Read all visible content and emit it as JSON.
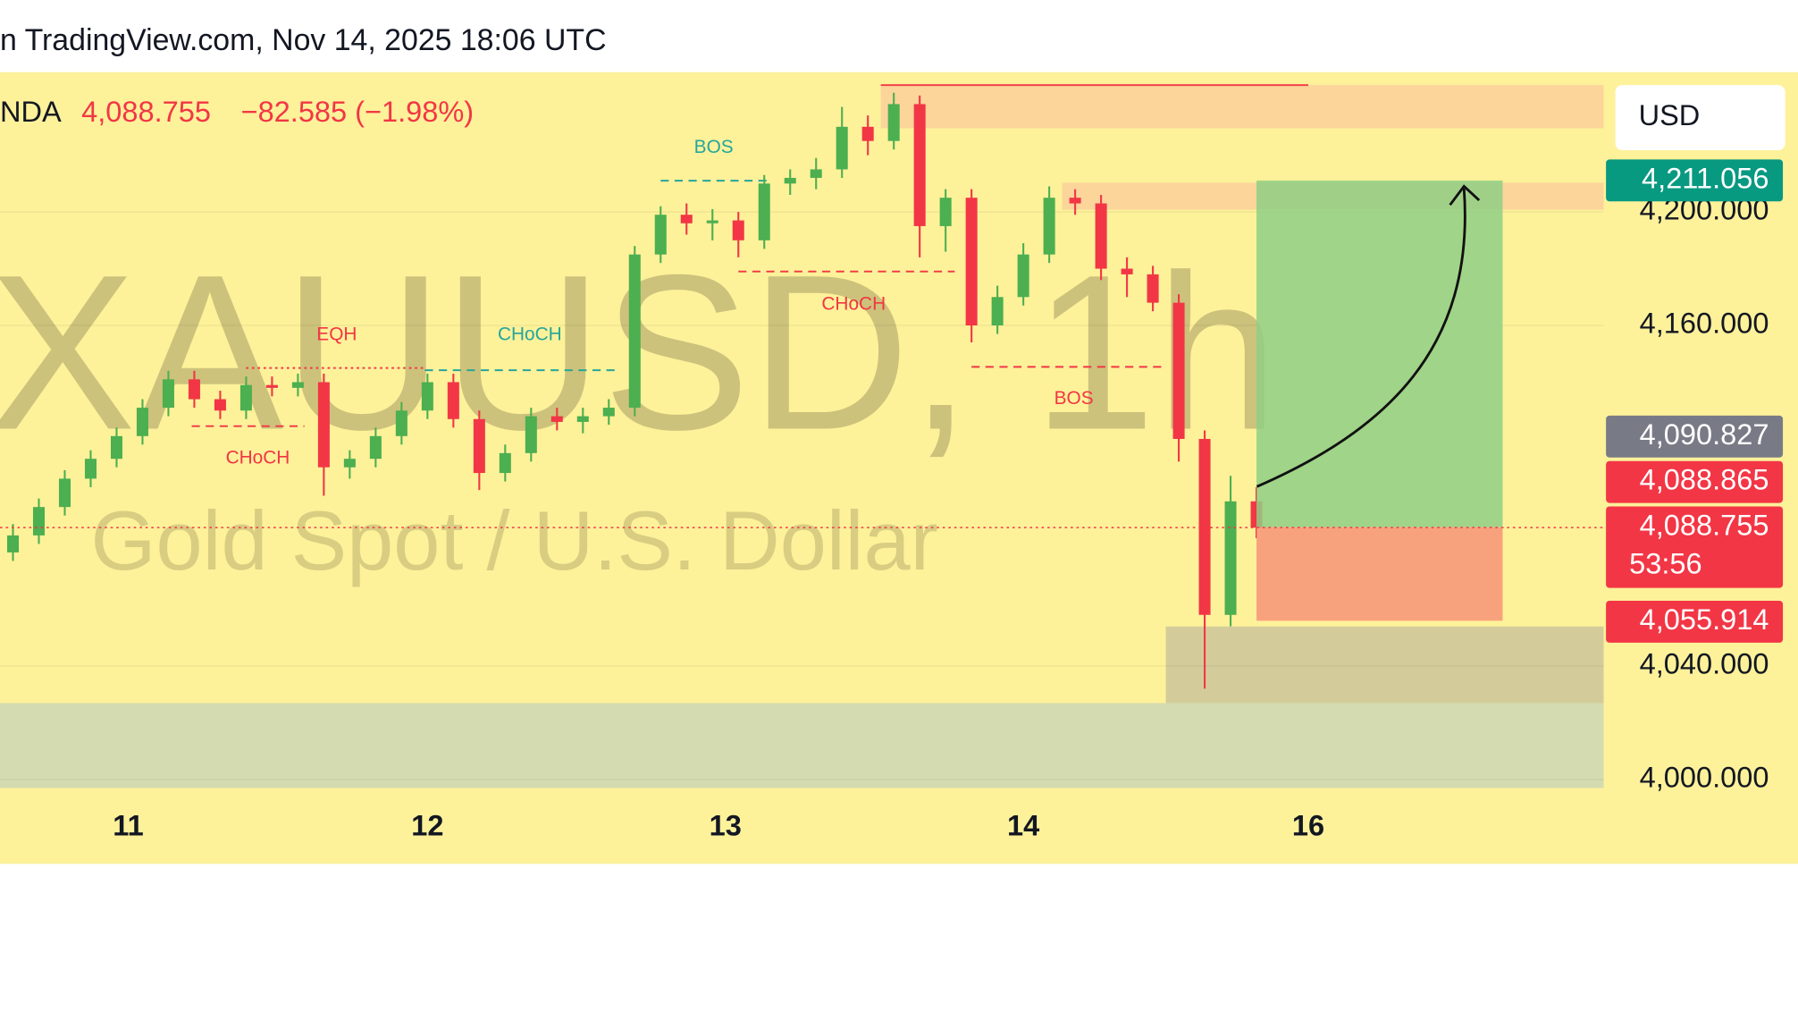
{
  "chart_data": {
    "type": "candlestick",
    "header": "n TradingView.com, Nov 14, 2025 18:06 UTC",
    "symbol": "NDA",
    "last_price": {
      "value": 4088.755,
      "label": "4,088.755"
    },
    "change": "−82.585 (−1.98%)",
    "currency": "USD",
    "watermark_title": "XAUUSD, 1h",
    "watermark_subtitle": "Gold Spot / U.S. Dollar",
    "up_color": "#4caf50",
    "down_color": "#f23645",
    "xlim": [
      0,
      123.8
    ],
    "ylim": [
      3997,
      4249
    ],
    "xticks": [
      {
        "value": 9.9,
        "label": "11"
      },
      {
        "value": 33,
        "label": "12"
      },
      {
        "value": 56,
        "label": "13"
      },
      {
        "value": 79,
        "label": "14"
      },
      {
        "value": 101,
        "label": "16"
      }
    ],
    "yticks": [
      {
        "value": 4000,
        "label": "4,000.000"
      },
      {
        "value": 4040,
        "label": "4,040.000"
      },
      {
        "value": 4160,
        "label": "4,160.000"
      },
      {
        "value": 4200,
        "label": "4,200.000"
      }
    ],
    "grid": true,
    "x": [
      1,
      3,
      5,
      7,
      9,
      11,
      13,
      15,
      17,
      19,
      21,
      23,
      25,
      27,
      29,
      31,
      33,
      35,
      37,
      39,
      41,
      43,
      45,
      47,
      49,
      51,
      53,
      55,
      57,
      59,
      61,
      63,
      65,
      67,
      69,
      71,
      73,
      75,
      77,
      79,
      81,
      83,
      85,
      87,
      89,
      91,
      93,
      95,
      97
    ],
    "open": [
      4080,
      4086,
      4096,
      4106,
      4113,
      4121,
      4131,
      4141,
      4134,
      4130,
      4139,
      4138,
      4140,
      4110,
      4113,
      4121,
      4130,
      4140,
      4127,
      4108,
      4115,
      4128,
      4126,
      4128,
      4131,
      4185,
      4199,
      4196,
      4197,
      4190,
      4210,
      4212,
      4215,
      4230,
      4225,
      4238,
      4195,
      4205,
      4160,
      4170,
      4185,
      4205,
      4203,
      4180,
      4178,
      4168,
      4120,
      4058,
      4098
    ],
    "high": [
      4090,
      4099,
      4109,
      4116,
      4124,
      4134,
      4144,
      4144,
      4137,
      4142,
      4142,
      4143,
      4143,
      4116,
      4124,
      4133,
      4143,
      4143,
      4130,
      4118,
      4131,
      4131,
      4131,
      4134,
      4188,
      4202,
      4203,
      4201,
      4200,
      4213,
      4215,
      4219,
      4237,
      4234,
      4242,
      4241,
      4208,
      4208,
      4174,
      4189,
      4209,
      4208,
      4206,
      4184,
      4181,
      4171,
      4123,
      4107,
      4103
    ],
    "low": [
      4077,
      4083,
      4093,
      4103,
      4110,
      4118,
      4128,
      4131,
      4127,
      4127,
      4135,
      4135,
      4100,
      4106,
      4110,
      4118,
      4127,
      4124,
      4102,
      4105,
      4112,
      4123,
      4122,
      4125,
      4128,
      4182,
      4192,
      4190,
      4184,
      4187,
      4206,
      4208,
      4212,
      4220,
      4222,
      4184,
      4186,
      4154,
      4157,
      4167,
      4182,
      4199,
      4176,
      4170,
      4165,
      4112,
      4032,
      4054,
      4085
    ],
    "close": [
      4086,
      4096,
      4106,
      4113,
      4121,
      4131,
      4141,
      4134,
      4130,
      4139,
      4138,
      4140,
      4110,
      4113,
      4121,
      4130,
      4140,
      4127,
      4108,
      4115,
      4128,
      4126,
      4128,
      4131,
      4185,
      4199,
      4196,
      4197,
      4190,
      4210,
      4212,
      4215,
      4230,
      4225,
      4238,
      4195,
      4205,
      4160,
      4170,
      4185,
      4205,
      4203,
      4180,
      4178,
      4168,
      4120,
      4058,
      4098,
      4088.755
    ],
    "zones": [
      {
        "x": [
          0,
          123.8
        ],
        "y": [
          3997,
          4026.9
        ],
        "color": "#d4dbb0"
      },
      {
        "x": [
          68,
          123.8
        ],
        "y": [
          4229.5,
          4244.7
        ],
        "color": "#fbd59a"
      },
      {
        "x": [
          82,
          123.8
        ],
        "y": [
          4200.8,
          4210.3
        ],
        "color": "#fbd59a"
      },
      {
        "x": [
          90,
          123.8
        ],
        "y": [
          4026.9,
          4053.9
        ],
        "color": "#d3cc9a"
      }
    ],
    "levels": [
      {
        "x": [
          68,
          101
        ],
        "y": 4244.7,
        "color": "#f23645",
        "style": "solid"
      },
      {
        "x": [
          19,
          32.8
        ],
        "y": 4145,
        "color": "#f23645",
        "style": "dotted"
      },
      {
        "x": [
          32.8,
          47.6
        ],
        "y": 4144.2,
        "color": "#26a69a",
        "style": "dashed"
      },
      {
        "x": [
          14.8,
          23.5
        ],
        "y": 4124.5,
        "color": "#f23645",
        "style": "dashed"
      },
      {
        "x": [
          51,
          59.3
        ],
        "y": 4211,
        "color": "#26a69a",
        "style": "dashed"
      },
      {
        "x": [
          57,
          73.7
        ],
        "y": 4179,
        "color": "#f23645",
        "style": "dashed"
      },
      {
        "x": [
          75,
          89.8
        ],
        "y": 4145.4,
        "color": "#f23645",
        "style": "dashed"
      }
    ],
    "annotations": [
      {
        "text": "BOS",
        "x": 55.1,
        "y": 4222.6,
        "color": "#26a69a"
      },
      {
        "text": "CHoCH",
        "x": 40.9,
        "y": 4156.5,
        "color": "#26a69a"
      },
      {
        "text": "EQH",
        "x": 26,
        "y": 4156.5,
        "color": "#f23645"
      },
      {
        "text": "CHoCH",
        "x": 19.9,
        "y": 4113,
        "color": "#f23645"
      },
      {
        "text": "CHoCH",
        "x": 65.9,
        "y": 4167.2,
        "color": "#f23645"
      },
      {
        "text": "BOS",
        "x": 82.9,
        "y": 4134,
        "color": "#f23645"
      }
    ],
    "position": {
      "x": [
        97,
        116
      ],
      "target": 4211.056,
      "entry": 4088.865,
      "stop": 4055.914,
      "profit_color": "#8fcf85",
      "loss_color": "#f7997a"
    },
    "price_labels": [
      {
        "value": 4211.056,
        "label": "4,211.056",
        "color": "#089981"
      },
      {
        "value": 4090.827,
        "label": "4,090.827",
        "color": "#787b86"
      },
      {
        "value": 4088.865,
        "label": "4,088.865",
        "color": "#f23645"
      },
      {
        "value": 4088.755,
        "label": "4,088.755",
        "color": "#f23645"
      },
      {
        "value": 4055.914,
        "label": "4,055.914",
        "color": "#f23645"
      }
    ],
    "countdown": "53:56"
  }
}
